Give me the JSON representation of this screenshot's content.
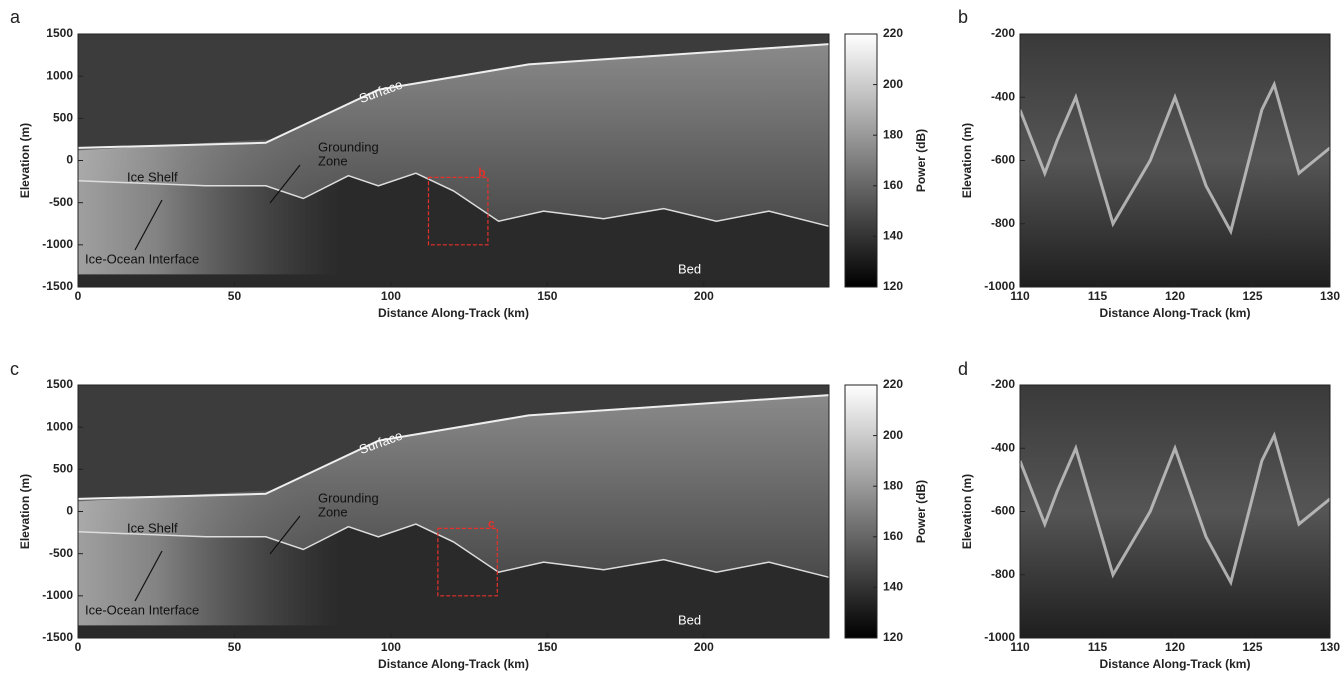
{
  "chart_data": [
    {
      "type": "radargram",
      "panel": "a",
      "xlabel": "Distance Along-Track (km)",
      "ylabel": "Elevation (m)",
      "xlim": [
        0,
        240
      ],
      "xticks": [
        0,
        50,
        100,
        150,
        200
      ],
      "ylim": [
        -1500,
        1500
      ],
      "yticks": [
        -1500,
        -1000,
        -500,
        0,
        500,
        1000,
        1500
      ],
      "colorbar": {
        "label": "Power (dB)",
        "lim": [
          120,
          220
        ],
        "ticks": [
          120,
          140,
          160,
          180,
          200,
          220
        ]
      },
      "annotations": [
        {
          "lines": [
            "Surface"
          ]
        },
        {
          "lines": [
            "Grounding",
            "Zone"
          ]
        },
        {
          "lines": [
            "Ice Shelf"
          ]
        },
        {
          "lines": [
            "Ice-Ocean Interface"
          ]
        },
        {
          "lines": [
            "Bed"
          ]
        }
      ],
      "highlight": {
        "label": "b",
        "xlim": [
          112,
          131
        ],
        "ylim": [
          -1000,
          -200
        ],
        "color": "#e8302a"
      }
    },
    {
      "type": "radargram",
      "panel": "b",
      "xlabel": "Distance Along-Track (km)",
      "ylabel": "Elevation (m)",
      "xlim": [
        110,
        130
      ],
      "xticks": [
        110,
        115,
        120,
        125,
        130
      ],
      "ylim": [
        -1000,
        -200
      ],
      "yticks": [
        -1000,
        -800,
        -600,
        -400,
        -200
      ]
    },
    {
      "type": "radargram",
      "panel": "c",
      "xlabel": "Distance Along-Track (km)",
      "ylabel": "Elevation (m)",
      "xlim": [
        0,
        240
      ],
      "xticks": [
        0,
        50,
        100,
        150,
        200
      ],
      "ylim": [
        -1500,
        1500
      ],
      "yticks": [
        -1500,
        -1000,
        -500,
        0,
        500,
        1000,
        1500
      ],
      "colorbar": {
        "label": "Power (dB)",
        "lim": [
          120,
          220
        ],
        "ticks": [
          120,
          140,
          160,
          180,
          200,
          220
        ]
      },
      "annotations": [
        {
          "lines": [
            "Surface"
          ]
        },
        {
          "lines": [
            "Grounding",
            "Zone"
          ]
        },
        {
          "lines": [
            "Ice Shelf"
          ]
        },
        {
          "lines": [
            "Ice-Ocean Interface"
          ]
        },
        {
          "lines": [
            "Bed"
          ]
        }
      ],
      "highlight": {
        "label": "c",
        "xlim": [
          115,
          134
        ],
        "ylim": [
          -1000,
          -200
        ],
        "color": "#e8302a"
      }
    },
    {
      "type": "radargram",
      "panel": "d",
      "xlabel": "Distance Along-Track (km)",
      "ylabel": "Elevation (m)",
      "xlim": [
        110,
        130
      ],
      "xticks": [
        110,
        115,
        120,
        125,
        130
      ],
      "ylim": [
        -1000,
        -200
      ],
      "yticks": [
        -1000,
        -800,
        -600,
        -400,
        -200
      ]
    }
  ]
}
